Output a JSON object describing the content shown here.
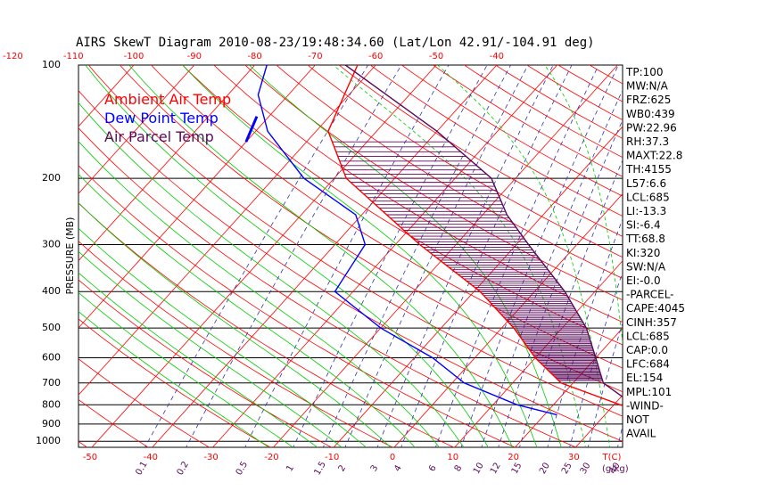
{
  "title": "AIRS SkewT Diagram 2010-08-23/19:48:34.60 (Lat/Lon 42.91/-104.91 deg)",
  "colors": {
    "ambient": "#ff0000",
    "dew": "#0000ff",
    "parcel": "#5a0a5a",
    "dry_adiabat": "#ff0000",
    "moist_adiabat": "#00cc00",
    "mixing_ratio": "#3333aa",
    "isobar": "#000000",
    "isotherm": "#ff0000",
    "hatch": "#5a0a5a"
  },
  "chart_data": {
    "type": "line",
    "title": "AIRS SkewT Diagram 2010-08-23/19:48:34.60 (Lat/Lon 42.91/-104.91 deg)",
    "ylabel": "PRESSURE (MB)",
    "y_scale": "log",
    "pressure_ticks": [
      100,
      200,
      300,
      400,
      500,
      600,
      700,
      800,
      900,
      1000
    ],
    "top_temp_ticks": [
      -120,
      -110,
      -100,
      -90,
      -80,
      -70,
      -60,
      -50,
      -40
    ],
    "bottom_temp_ticks": [
      -50,
      -40,
      -30,
      -20,
      -10,
      0,
      10,
      20,
      30
    ],
    "bottom_t_unit": "T(C)",
    "mixing_ratio_ticks": [
      "0.1",
      "0.2",
      "0.5",
      "1",
      "1.5",
      "2",
      "3",
      "4",
      "6",
      "8",
      "10",
      "12",
      "15",
      "20",
      "25",
      "30",
      "40"
    ],
    "mixing_ratio_unit": "(g/kg)",
    "legend": [
      "Ambient Air Temp",
      "Dew Point Temp",
      "Air Parcel Temp"
    ],
    "series": [
      {
        "name": "Ambient Air Temp",
        "points": [
          [
            850,
            37
          ],
          [
            700,
            18
          ],
          [
            600,
            10
          ],
          [
            500,
            2
          ],
          [
            400,
            -9
          ],
          [
            300,
            -26
          ],
          [
            200,
            -48
          ],
          [
            150,
            -58
          ],
          [
            100,
            -63
          ]
        ]
      },
      {
        "name": "Dew Point Temp",
        "points": [
          [
            850,
            22
          ],
          [
            800,
            14
          ],
          [
            700,
            2
          ],
          [
            600,
            -7
          ],
          [
            500,
            -20
          ],
          [
            400,
            -33
          ],
          [
            300,
            -35
          ],
          [
            250,
            -41
          ],
          [
            200,
            -55
          ],
          [
            150,
            -68
          ],
          [
            120,
            -75
          ],
          [
            100,
            -78
          ]
        ]
      },
      {
        "name": "Air Parcel Temp",
        "points": [
          [
            850,
            37
          ],
          [
            700,
            25
          ],
          [
            600,
            20
          ],
          [
            500,
            14
          ],
          [
            400,
            5
          ],
          [
            300,
            -8
          ],
          [
            250,
            -16
          ],
          [
            200,
            -24
          ],
          [
            150,
            -40
          ],
          [
            100,
            -65
          ]
        ]
      }
    ]
  },
  "indices": [
    "TP:100",
    "MW:N/A",
    "FRZ:625",
    "WB0:439",
    "PW:22.96",
    "RH:37.3",
    "MAXT:22.8",
    "TH:4155",
    "L57:6.6",
    "LCL:685",
    "LI:-13.3",
    "SI:-6.4",
    "TT:68.8",
    "KI:320",
    "SW:N/A",
    "EI:-0.0",
    "-PARCEL-",
    "CAPE:4045",
    "CINH:357",
    "LCL:685",
    "CAP:0.0",
    "LFC:684",
    "EL:154",
    "MPL:101",
    "-WIND-",
    "NOT",
    "AVAIL"
  ]
}
